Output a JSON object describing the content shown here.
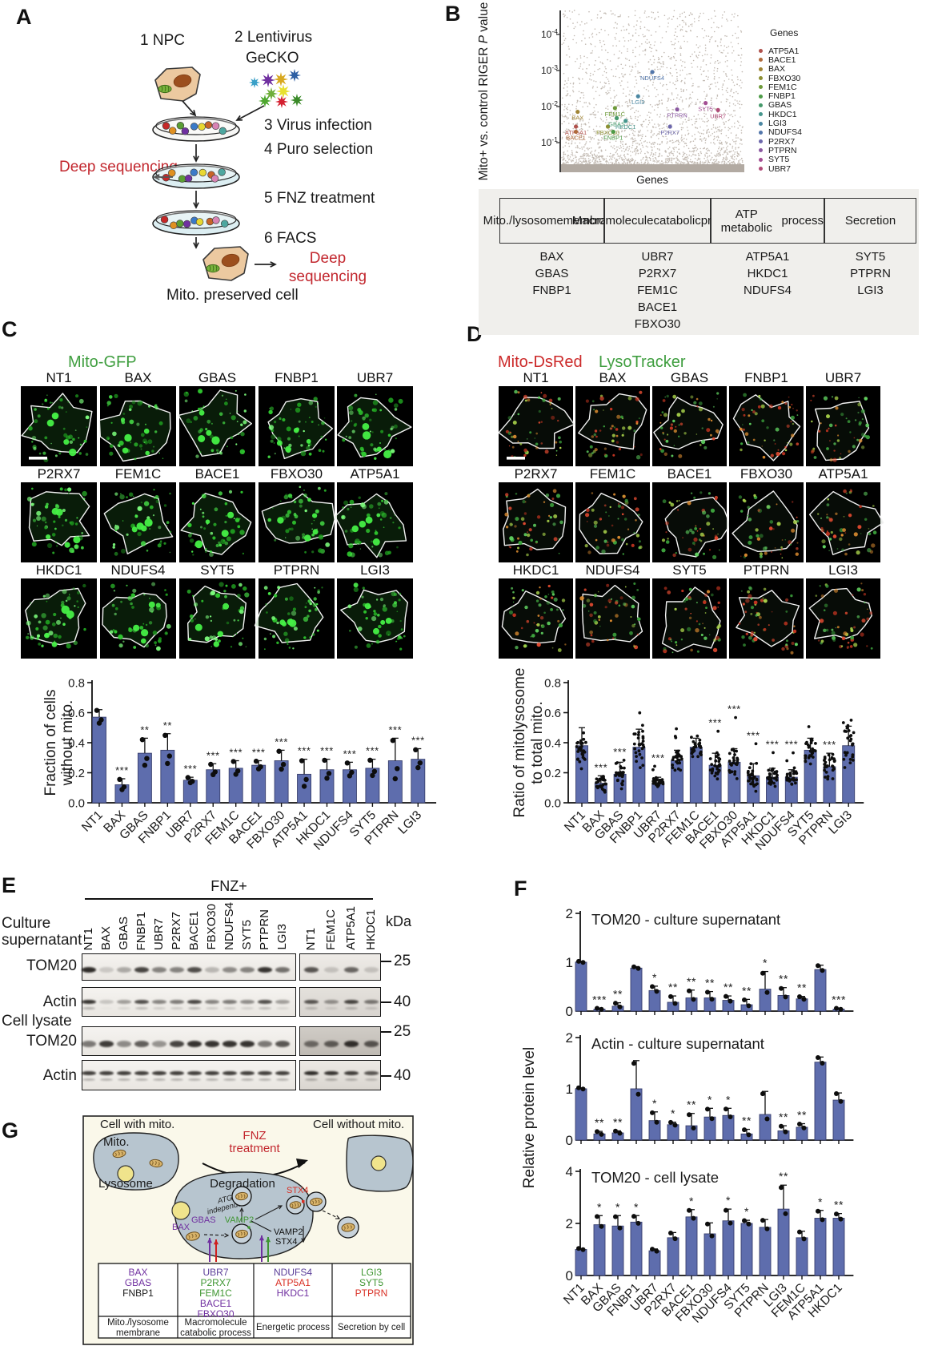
{
  "panels": {
    "a": "A",
    "b": "B",
    "c": "C",
    "d": "D",
    "e": "E",
    "f": "F",
    "g": "G"
  },
  "panel_a": {
    "step1": "1  NPC",
    "step2a": "2  Lentivirus",
    "step2b": "GeCKO",
    "step3": "3  Virus infection",
    "step4": "4  Puro selection",
    "step5": "5  FNZ treatment",
    "step6": "6  FACS",
    "deep_seq_left": "Deep sequencing",
    "deep_seq_right": "Deep sequencing",
    "result_label": "Mito. preserved cell",
    "accent_red": "#c2272e"
  },
  "panel_b": {
    "ylabel_pre": "Mito+ vs. control RIGER ",
    "ylabel_italic": "P",
    "ylabel_post": " value",
    "xlabel": "Genes",
    "legend_title": "Genes",
    "table": {
      "headers": [
        [
          "Mito./lysosome",
          "membrane"
        ],
        [
          "Macromolecule",
          "catabolic",
          "process"
        ],
        [
          "ATP metabolic",
          "process"
        ],
        [
          "Secretion"
        ]
      ],
      "columns": [
        [
          "BAX",
          "GBAS",
          "FNBP1"
        ],
        [
          "UBR7",
          "P2RX7",
          "FEM1C",
          "BACE1",
          "FBXO30"
        ],
        [
          "ATP5A1",
          "HKDC1",
          "NDUFS4"
        ],
        [
          "SYT5",
          "PTPRN",
          "LGI3"
        ]
      ]
    }
  },
  "panel_c": {
    "channel": "Mito-GFP",
    "channel_color": "#3f9e3f",
    "genes": [
      "NT1",
      "BAX",
      "GBAS",
      "FNBP1",
      "UBR7",
      "P2RX7",
      "FEM1C",
      "BACE1",
      "FBXO30",
      "ATP5A1",
      "HKDC1",
      "NDUFS4",
      "SYT5",
      "PTPRN",
      "LGI3"
    ]
  },
  "panel_d": {
    "channel_red": "Mito-DsRed",
    "channel_red_color": "#cc2a2a",
    "channel_green": "LysoTracker",
    "channel_green_color": "#3f9e3f",
    "genes": [
      "NT1",
      "BAX",
      "GBAS",
      "FNBP1",
      "UBR7",
      "P2RX7",
      "FEM1C",
      "BACE1",
      "FBXO30",
      "ATP5A1",
      "HKDC1",
      "NDUFS4",
      "SYT5",
      "PTPRN",
      "LGI3"
    ]
  },
  "panel_e": {
    "condition": "FNZ+",
    "kda_unit": "kDa",
    "group1_line1": "Culture",
    "group1_line2": "supernatant",
    "group2": "Cell lysate",
    "lanes_left": [
      "NT1",
      "BAX",
      "GBAS",
      "FNBP1",
      "UBR7",
      "P2RX7",
      "BACE1",
      "FBXO30",
      "NDUFS4",
      "SYT5",
      "PTPRN",
      "LGI3"
    ],
    "lanes_right": [
      "NT1",
      "FEM1C",
      "ATP5A1",
      "HKDC1"
    ],
    "rows": [
      {
        "protein": "TOM20",
        "kda": "25",
        "left": [
          0.95,
          0.05,
          0.22,
          0.8,
          0.45,
          0.45,
          0.75,
          0.15,
          0.4,
          0.45,
          0.9,
          0.55
        ],
        "right": [
          0.7,
          0.06,
          0.6,
          0.06
        ]
      },
      {
        "protein": "Actin",
        "kda": "40",
        "left": [
          0.9,
          0.08,
          0.3,
          0.75,
          0.45,
          0.5,
          0.8,
          0.45,
          0.5,
          0.4,
          0.75,
          0.3
        ],
        "right": [
          0.7,
          0.35,
          0.8,
          0.5
        ]
      },
      {
        "protein": "TOM20",
        "kda": "25",
        "left": [
          0.5,
          0.85,
          0.4,
          0.65,
          0.35,
          0.8,
          0.9,
          0.9,
          0.9,
          0.9,
          0.5,
          0.7
        ],
        "right": [
          0.5,
          0.6,
          0.9,
          0.65
        ]
      },
      {
        "protein": "Actin",
        "kda": "40",
        "left": [
          0.85,
          0.85,
          0.85,
          0.85,
          0.85,
          0.85,
          0.85,
          0.85,
          0.85,
          0.85,
          0.85,
          0.85
        ],
        "right": [
          0.95,
          0.9,
          0.85,
          0.7
        ]
      }
    ]
  },
  "panel_f": {
    "ylabel": "Relative protein level"
  },
  "panel_g": {
    "cell_with": "Cell with mito.",
    "cell_without": "Cell without mito.",
    "fnz_line1": "FNZ",
    "fnz_line2": "treatment",
    "mito": "Mito.",
    "lysosome": "Lysosome",
    "degradation": "Degradation",
    "atg5_line1": "ATG5",
    "atg5_line2": "independent",
    "gbas": "GBAS",
    "bax": "BAX",
    "vamp2_green": "VAMP2",
    "stx4_red": "STX4",
    "vamp2_black": "VAMP2",
    "stx4_black": "STX4",
    "colors": {
      "purple": "#7030a0",
      "indigo": "#5b3e99",
      "green": "#3f9632",
      "red": "#d93025",
      "black": "#1a1a1a"
    },
    "table": {
      "headers": [
        [
          "Mito./lysosome",
          "membrane"
        ],
        [
          "Macromolecule",
          "catabolic process"
        ],
        [
          "Energetic process"
        ],
        [
          "Secretion by cell"
        ]
      ],
      "columns": [
        [
          {
            "t": "BAX",
            "c": "#7030a0"
          },
          {
            "t": "GBAS",
            "c": "#7030a0"
          },
          {
            "t": "FNBP1",
            "c": "#1a1a1a"
          }
        ],
        [
          {
            "t": "UBR7",
            "c": "#5b3e99"
          },
          {
            "t": "P2RX7",
            "c": "#3f9632"
          },
          {
            "t": "FEM1C",
            "c": "#3f9632"
          },
          {
            "t": "BACE1",
            "c": "#7030a0"
          },
          {
            "t": "FBXO30",
            "c": "#7030a0"
          }
        ],
        [
          {
            "t": "NDUFS4",
            "c": "#5b3e99"
          },
          {
            "t": "ATP5A1",
            "c": "#d93025"
          },
          {
            "t": "HKDC1",
            "c": "#7030a0"
          }
        ],
        [
          {
            "t": "LGI3",
            "c": "#3f9632"
          },
          {
            "t": "SYT5",
            "c": "#3f9632"
          },
          {
            "t": "PTPRN",
            "c": "#d93025"
          }
        ]
      ]
    }
  },
  "chart_data": [
    {
      "type": "scatter",
      "panel": "B",
      "xlabel": "Genes",
      "ylabel": "Mito+ vs. control RIGER P value",
      "yscale": "log",
      "ytick_labels": [
        "10^-4",
        "10^-3",
        "10^-2",
        "10^-1"
      ],
      "legend_title": "Genes",
      "background": "dense cloud of unlabeled genes in gray, P mostly 0.05-1",
      "genes": [
        {
          "name": "ATP5A1",
          "x": 0.07,
          "p": 0.036,
          "color": "#b0524d"
        },
        {
          "name": "BACE1",
          "x": 0.07,
          "p": 0.05,
          "color": "#b06a3c"
        },
        {
          "name": "BAX",
          "x": 0.08,
          "p": 0.014,
          "color": "#a08434"
        },
        {
          "name": "FBXO30",
          "x": 0.25,
          "p": 0.036,
          "color": "#8d9033"
        },
        {
          "name": "FEM1C",
          "x": 0.29,
          "p": 0.011,
          "color": "#6e9a3a"
        },
        {
          "name": "FNBP1",
          "x": 0.28,
          "p": 0.05,
          "color": "#4d9b47"
        },
        {
          "name": "GBAS",
          "x": 0.3,
          "p": 0.021,
          "color": "#45996b"
        },
        {
          "name": "HKDC1",
          "x": 0.35,
          "p": 0.025,
          "color": "#46968d"
        },
        {
          "name": "LGI3",
          "x": 0.42,
          "p": 0.0052,
          "color": "#4b87a2"
        },
        {
          "name": "NDUFS4",
          "x": 0.5,
          "p": 0.0011,
          "color": "#5276ab"
        },
        {
          "name": "P2RX7",
          "x": 0.6,
          "p": 0.036,
          "color": "#6c67ab"
        },
        {
          "name": "PTPRN",
          "x": 0.64,
          "p": 0.012,
          "color": "#8a58a0"
        },
        {
          "name": "SYT5",
          "x": 0.8,
          "p": 0.008,
          "color": "#a34d93"
        },
        {
          "name": "UBR7",
          "x": 0.87,
          "p": 0.0125,
          "color": "#b04b78"
        }
      ]
    },
    {
      "type": "bar",
      "panel": "C",
      "ylabel_lines": [
        "Fraction of cells",
        "without mito."
      ],
      "ylim": [
        0,
        0.8
      ],
      "yticks": [
        0,
        0.2,
        0.4,
        0.6,
        0.8
      ],
      "categories": [
        "NT1",
        "BAX",
        "GBAS",
        "FNBP1",
        "UBR7",
        "P2RX7",
        "FEM1C",
        "BACE1",
        "FBXO30",
        "ATP5A1",
        "HKDC1",
        "NDUFS4",
        "SYT5",
        "PTPRN",
        "LGI3"
      ],
      "values": [
        0.57,
        0.12,
        0.33,
        0.35,
        0.15,
        0.22,
        0.23,
        0.25,
        0.28,
        0.19,
        0.22,
        0.22,
        0.23,
        0.28,
        0.29
      ],
      "errors": [
        0.05,
        0.04,
        0.1,
        0.11,
        0.02,
        0.04,
        0.05,
        0.03,
        0.07,
        0.1,
        0.07,
        0.05,
        0.06,
        0.15,
        0.07
      ],
      "sig": [
        "",
        "***",
        "**",
        "**",
        "***",
        "***",
        "***",
        "***",
        "***",
        "***",
        "***",
        "***",
        "***",
        "***",
        "***"
      ],
      "points_per_bar": 3
    },
    {
      "type": "bar",
      "panel": "D",
      "ylabel_lines": [
        "Ratio of mitolysosome",
        "to total mito."
      ],
      "ylim": [
        0,
        0.8
      ],
      "yticks": [
        0,
        0.2,
        0.4,
        0.6,
        0.8
      ],
      "categories": [
        "NT1",
        "BAX",
        "GBAS",
        "FNBP1",
        "UBR7",
        "P2RX7",
        "FEM1C",
        "BACE1",
        "FBXO30",
        "ATP5A1",
        "HKDC1",
        "NDUFS4",
        "SYT5",
        "PTPRN",
        "LGI3"
      ],
      "values": [
        0.38,
        0.13,
        0.19,
        0.37,
        0.13,
        0.28,
        0.37,
        0.25,
        0.27,
        0.18,
        0.17,
        0.17,
        0.35,
        0.24,
        0.38
      ],
      "errors": [
        0.12,
        0.05,
        0.08,
        0.12,
        0.04,
        0.07,
        0.06,
        0.08,
        0.09,
        0.08,
        0.06,
        0.05,
        0.08,
        0.09,
        0.13
      ],
      "sig": [
        "",
        "***",
        "***",
        "",
        "***",
        "",
        "",
        "***",
        "***",
        "***",
        "***",
        "***",
        "",
        "***",
        ""
      ],
      "points_per_bar": 28
    },
    {
      "type": "bar",
      "panel": "F",
      "title": "TOM20 - culture supernatant",
      "ylim": [
        0,
        2
      ],
      "yticks": [
        0,
        1,
        2
      ],
      "categories": [
        "NT1",
        "BAX",
        "GBAS",
        "FNBP1",
        "UBR7",
        "P2RX7",
        "BACE1",
        "FBXO30",
        "NDUFS4",
        "SYT5",
        "PTPRN",
        "LGI3",
        "FEM1C",
        "ATP5A1",
        "HKDC1"
      ],
      "values": [
        1.0,
        0.04,
        0.1,
        0.88,
        0.42,
        0.18,
        0.27,
        0.27,
        0.22,
        0.13,
        0.45,
        0.32,
        0.25,
        0.85,
        0.04
      ],
      "errors": [
        0.02,
        0.02,
        0.07,
        0.03,
        0.09,
        0.13,
        0.16,
        0.13,
        0.09,
        0.11,
        0.36,
        0.16,
        0.05,
        0.09,
        0.02
      ],
      "sig": [
        "",
        "***",
        "**",
        "",
        "*",
        "**",
        "**",
        "**",
        "**",
        "**",
        "*",
        "**",
        "**",
        "",
        "***"
      ],
      "points_per_bar": 2
    },
    {
      "type": "bar",
      "panel": "F",
      "title": "Actin - culture supernatant",
      "ylim": [
        0,
        2
      ],
      "yticks": [
        0,
        1,
        2
      ],
      "categories": [
        "NT1",
        "BAX",
        "GBAS",
        "FNBP1",
        "UBR7",
        "P2RX7",
        "BACE1",
        "FBXO30",
        "NDUFS4",
        "SYT5",
        "PTPRN",
        "LGI3",
        "FEM1C",
        "ATP5A1",
        "HKDC1"
      ],
      "values": [
        1.0,
        0.12,
        0.14,
        1.0,
        0.38,
        0.3,
        0.28,
        0.45,
        0.48,
        0.12,
        0.5,
        0.18,
        0.25,
        1.52,
        0.78
      ],
      "errors": [
        0.02,
        0.05,
        0.04,
        0.55,
        0.17,
        0.05,
        0.24,
        0.17,
        0.14,
        0.09,
        0.45,
        0.1,
        0.07,
        0.1,
        0.14
      ],
      "sig": [
        "",
        "**",
        "**",
        "",
        "*",
        "*",
        "**",
        "*",
        "*",
        "**",
        "",
        "**",
        "**",
        "",
        ""
      ],
      "points_per_bar": 2
    },
    {
      "type": "bar",
      "panel": "F",
      "title": "TOM20 - cell lysate",
      "ylim": [
        0,
        4
      ],
      "yticks": [
        0,
        2,
        4
      ],
      "categories": [
        "NT1",
        "BAX",
        "GBAS",
        "FNBP1",
        "UBR7",
        "P2RX7",
        "BACE1",
        "FBXO30",
        "NDUFS4",
        "SYT5",
        "PTPRN",
        "LGI3",
        "FEM1C",
        "ATP5A1",
        "HKDC1"
      ],
      "values": [
        1.0,
        1.95,
        1.9,
        2.05,
        0.95,
        1.45,
        2.25,
        1.6,
        2.1,
        2.0,
        1.85,
        2.55,
        1.45,
        2.2,
        2.2
      ],
      "errors": [
        0.04,
        0.35,
        0.4,
        0.25,
        0.07,
        0.2,
        0.28,
        0.42,
        0.45,
        0.12,
        0.3,
        0.92,
        0.25,
        0.3,
        0.18
      ],
      "sig": [
        "",
        "*",
        "*",
        "*",
        "",
        "",
        "*",
        "",
        "*",
        "*",
        "",
        "**",
        "",
        "*",
        "**"
      ],
      "points_per_bar": 2
    }
  ]
}
